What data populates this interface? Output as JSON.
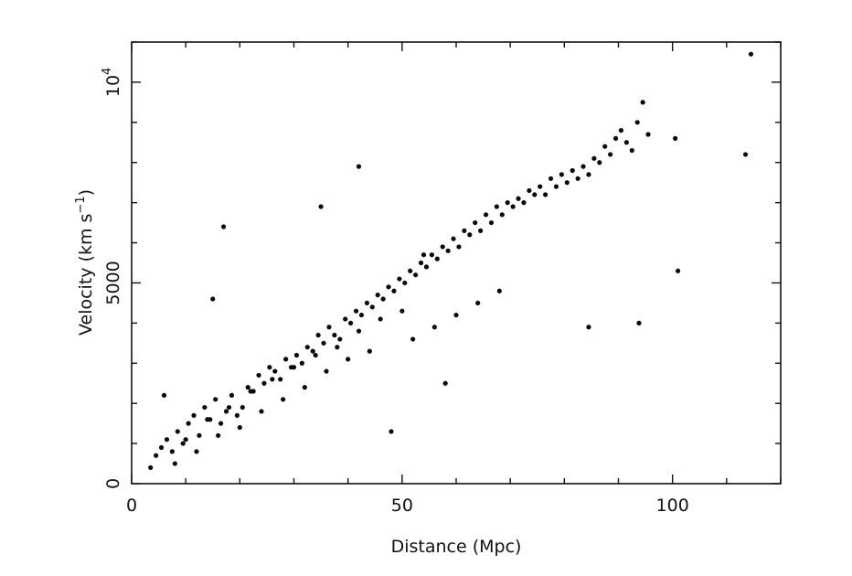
{
  "chart_data": {
    "type": "scatter",
    "title": "",
    "xlabel": "Distance (Mpc)",
    "ylabel_base": "Velocity (km s",
    "ylabel_exp": "−1",
    "ylabel_close": ")",
    "xlim": [
      0,
      120
    ],
    "ylim": [
      0,
      11000
    ],
    "x_ticks": [
      {
        "value": 0,
        "label": "0"
      },
      {
        "value": 50,
        "label": "50"
      },
      {
        "value": 100,
        "label": "100"
      }
    ],
    "y_ticks": [
      {
        "value": 0,
        "label": "0"
      },
      {
        "value": 5000,
        "label": "5000"
      },
      {
        "value": 10000,
        "label": "10",
        "exp": "4"
      }
    ],
    "x_minor_step": 10,
    "y_minor_step": 1000,
    "grid": false,
    "color": "#0a0a0a",
    "points": {
      "x": [
        3.5,
        4.5,
        5.5,
        6.5,
        7.5,
        8.5,
        9.5,
        10.5,
        11.5,
        12.5,
        13.5,
        14.5,
        15.5,
        16.5,
        17.5,
        18.5,
        19.5,
        20.5,
        21.5,
        22.5,
        23.5,
        24.5,
        25.5,
        26.5,
        27.5,
        28.5,
        29.5,
        30.5,
        31.5,
        32.5,
        33.5,
        34.5,
        35.5,
        36.5,
        37.5,
        38.5,
        39.5,
        40.5,
        41.5,
        42.5,
        43.5,
        44.5,
        45.5,
        46.5,
        47.5,
        48.5,
        49.5,
        50.5,
        51.5,
        52.5,
        53.5,
        54.5,
        55.5,
        56.5,
        57.5,
        58.5,
        59.5,
        60.5,
        61.5,
        62.5,
        63.5,
        64.5,
        65.5,
        66.5,
        67.5,
        68.5,
        69.5,
        70.5,
        71.5,
        72.5,
        73.5,
        74.5,
        75.5,
        76.5,
        77.5,
        78.5,
        79.5,
        80.5,
        81.5,
        82.5,
        83.5,
        84.5,
        85.5,
        86.5,
        87.5,
        88.5,
        89.5,
        90.5,
        91.5,
        92.5,
        93.5,
        94.5,
        95.5,
        100.5,
        101.0,
        114.5,
        113.5,
        17.0,
        15.0,
        42.0,
        48.0,
        35.0,
        58.0,
        84.5,
        93.8,
        8.0,
        12.0,
        16.0,
        20.0,
        24.0,
        28.0,
        32.0,
        36.0,
        40.0,
        44.0,
        52.0,
        56.0,
        60.0,
        64.0,
        68.0,
        6.0,
        10.0,
        14.0,
        18.0,
        22.0,
        26.0,
        30.0,
        34.0,
        38.0,
        42.0,
        46.0,
        50.0,
        54.0
      ],
      "y": [
        400,
        700,
        900,
        1100,
        800,
        1300,
        1000,
        1500,
        1700,
        1200,
        1900,
        1600,
        2100,
        1500,
        1800,
        2200,
        1700,
        1900,
        2400,
        2300,
        2700,
        2500,
        2900,
        2800,
        2600,
        3100,
        2900,
        3200,
        3000,
        3400,
        3300,
        3700,
        3500,
        3900,
        3700,
        3600,
        4100,
        4000,
        4300,
        4200,
        4500,
        4400,
        4700,
        4600,
        4900,
        4800,
        5100,
        5000,
        5300,
        5200,
        5500,
        5400,
        5700,
        5600,
        5900,
        5800,
        6100,
        5900,
        6300,
        6200,
        6500,
        6300,
        6700,
        6500,
        6900,
        6700,
        7000,
        6900,
        7100,
        7000,
        7300,
        7200,
        7400,
        7200,
        7600,
        7400,
        7700,
        7500,
        7800,
        7600,
        7900,
        7700,
        8100,
        8000,
        8400,
        8200,
        8600,
        8800,
        8500,
        8300,
        9000,
        9500,
        8700,
        8600,
        5300,
        10700,
        8200,
        6400,
        4600,
        7900,
        1300,
        6900,
        2500,
        3900,
        4000,
        500,
        800,
        1200,
        1400,
        1800,
        2100,
        2400,
        2800,
        3100,
        3300,
        3600,
        3900,
        4200,
        4500,
        4800,
        2200,
        1100,
        1600,
        1900,
        2300,
        2600,
        2900,
        3200,
        3400,
        3800,
        4100,
        4300,
        5700
      ]
    }
  }
}
